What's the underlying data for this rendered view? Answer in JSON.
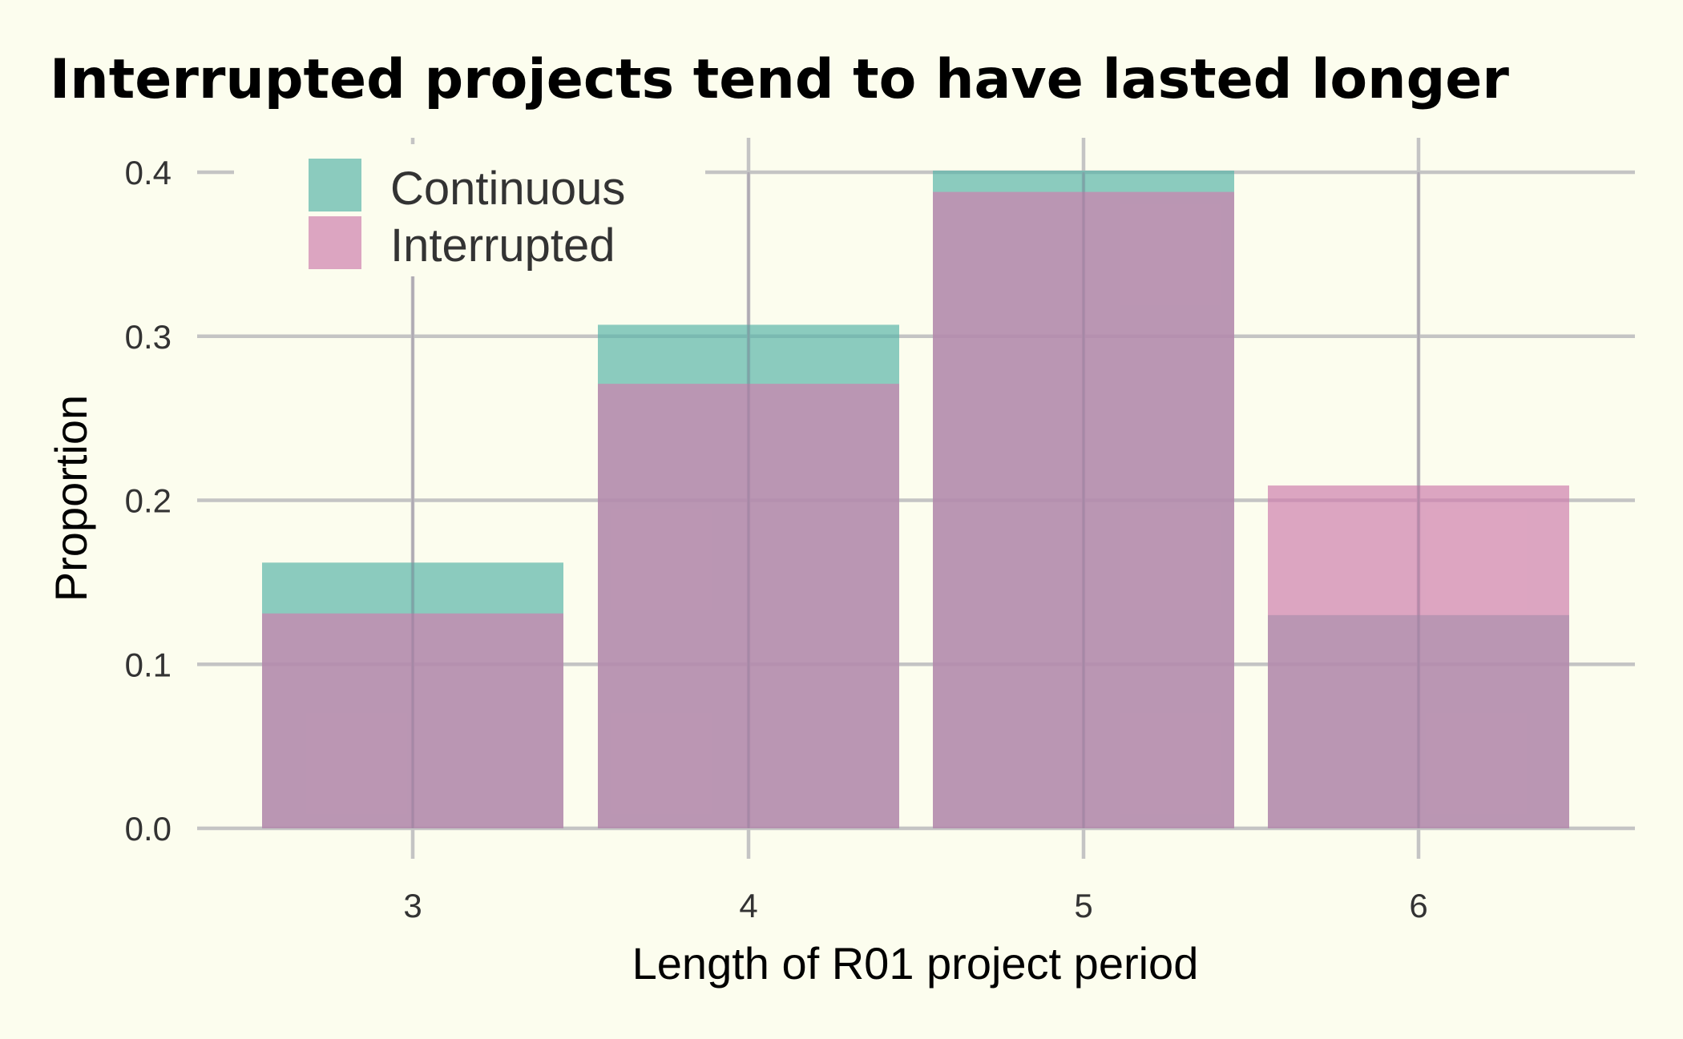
{
  "chart_data": {
    "type": "bar",
    "title": "Interrupted projects tend to have lasted longer",
    "xlabel": "Length of R01 project period",
    "ylabel": "Proportion",
    "categories": [
      "3",
      "4",
      "5",
      "6"
    ],
    "series": [
      {
        "name": "Continuous",
        "values": [
          0.162,
          0.307,
          0.401,
          0.13
        ],
        "color": "#5BB5A9"
      },
      {
        "name": "Interrupted",
        "values": [
          0.131,
          0.271,
          0.388,
          0.209
        ],
        "color": "#CF7FAE"
      }
    ],
    "ylim": [
      0,
      0.4
    ],
    "yticks": [
      "0.0",
      "0.1",
      "0.2",
      "0.3",
      "0.4"
    ],
    "grid": true,
    "legend_position": "top-left",
    "overlap": "bars of both series overlaid at each category with transparency",
    "background_color": "#FCFDEE"
  }
}
